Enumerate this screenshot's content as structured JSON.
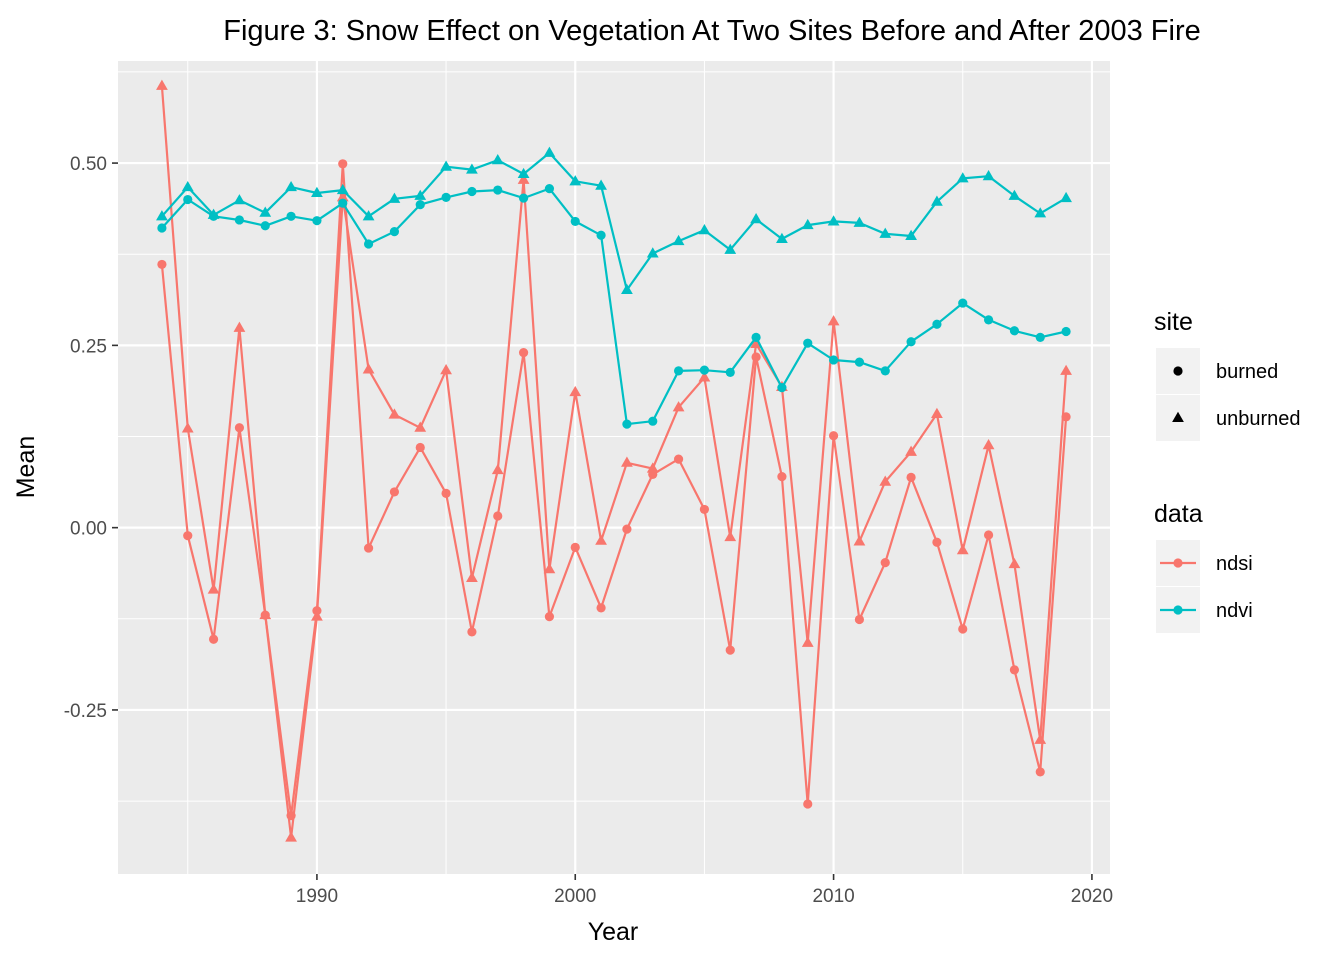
{
  "chart_data": {
    "type": "line",
    "title": "Figure 3: Snow Effect on Vegetation At Two Sites Before and After 2003 Fire",
    "xlabel": "Year",
    "ylabel": "Mean",
    "xlim": [
      1982.3,
      2020.7
    ],
    "ylim": [
      -0.475,
      0.64
    ],
    "xticks": [
      1990,
      2000,
      2010,
      2020
    ],
    "yticks": [
      -0.25,
      0,
      0.25,
      0.5
    ],
    "ytick_labels": [
      "-0.25",
      "0.00",
      "0.25",
      "0.50"
    ],
    "grid": true,
    "legend_position": "right",
    "legend": {
      "site_title": "site",
      "site_items": [
        {
          "label": "burned",
          "shape": "circle"
        },
        {
          "label": "unburned",
          "shape": "triangle"
        }
      ],
      "data_title": "data",
      "data_items": [
        {
          "label": "ndsi",
          "color": "#F8766D"
        },
        {
          "label": "ndvi",
          "color": "#00BFC4"
        }
      ]
    },
    "x": [
      1984,
      1985,
      1986,
      1987,
      1988,
      1989,
      1990,
      1991,
      1992,
      1993,
      1994,
      1995,
      1996,
      1997,
      1998,
      1999,
      2000,
      2001,
      2002,
      2003,
      2004,
      2005,
      2006,
      2007,
      2008,
      2009,
      2010,
      2011,
      2012,
      2013,
      2014,
      2015,
      2016,
      2017,
      2018,
      2019
    ],
    "series": [
      {
        "data": "ndsi",
        "site": "burned",
        "color": "#F8766D",
        "shape": "circle",
        "values": [
          0.361,
          -0.011,
          -0.153,
          0.137,
          -0.12,
          -0.395,
          -0.114,
          0.499,
          -0.028,
          0.049,
          0.11,
          0.047,
          -0.143,
          0.016,
          0.24,
          -0.122,
          -0.027,
          -0.11,
          -0.002,
          0.073,
          0.094,
          0.025,
          -0.168,
          0.234,
          0.07,
          -0.379,
          0.126,
          -0.126,
          -0.048,
          0.069,
          -0.02,
          -0.139,
          -0.01,
          -0.195,
          -0.335,
          0.152
        ]
      },
      {
        "data": "ndsi",
        "site": "unburned",
        "color": "#F8766D",
        "shape": "triangle",
        "values": [
          0.606,
          0.136,
          -0.085,
          0.274,
          -0.12,
          -0.425,
          -0.122,
          0.453,
          0.217,
          0.155,
          0.137,
          0.216,
          -0.069,
          0.079,
          0.477,
          -0.057,
          0.186,
          -0.018,
          0.089,
          0.081,
          0.165,
          0.206,
          -0.013,
          0.252,
          0.193,
          -0.158,
          0.283,
          -0.019,
          0.063,
          0.104,
          0.156,
          -0.031,
          0.113,
          -0.05,
          -0.291,
          0.215
        ]
      },
      {
        "data": "ndvi",
        "site": "burned",
        "color": "#00BFC4",
        "shape": "circle",
        "values": [
          0.411,
          0.45,
          0.427,
          0.422,
          0.414,
          0.427,
          0.421,
          0.445,
          0.389,
          0.406,
          0.443,
          0.453,
          0.461,
          0.463,
          0.452,
          0.465,
          0.42,
          0.401,
          0.142,
          0.146,
          0.215,
          0.216,
          0.213,
          0.261,
          0.192,
          0.253,
          0.23,
          0.227,
          0.215,
          0.255,
          0.279,
          0.308,
          0.285,
          0.27,
          0.261,
          0.269
        ]
      },
      {
        "data": "ndvi",
        "site": "unburned",
        "color": "#00BFC4",
        "shape": "triangle",
        "values": [
          0.427,
          0.467,
          0.429,
          0.449,
          0.432,
          0.467,
          0.459,
          0.463,
          0.427,
          0.451,
          0.455,
          0.495,
          0.491,
          0.504,
          0.485,
          0.514,
          0.475,
          0.469,
          0.326,
          0.376,
          0.393,
          0.408,
          0.381,
          0.423,
          0.396,
          0.415,
          0.42,
          0.418,
          0.403,
          0.4,
          0.447,
          0.479,
          0.482,
          0.455,
          0.431,
          0.452
        ]
      }
    ]
  }
}
